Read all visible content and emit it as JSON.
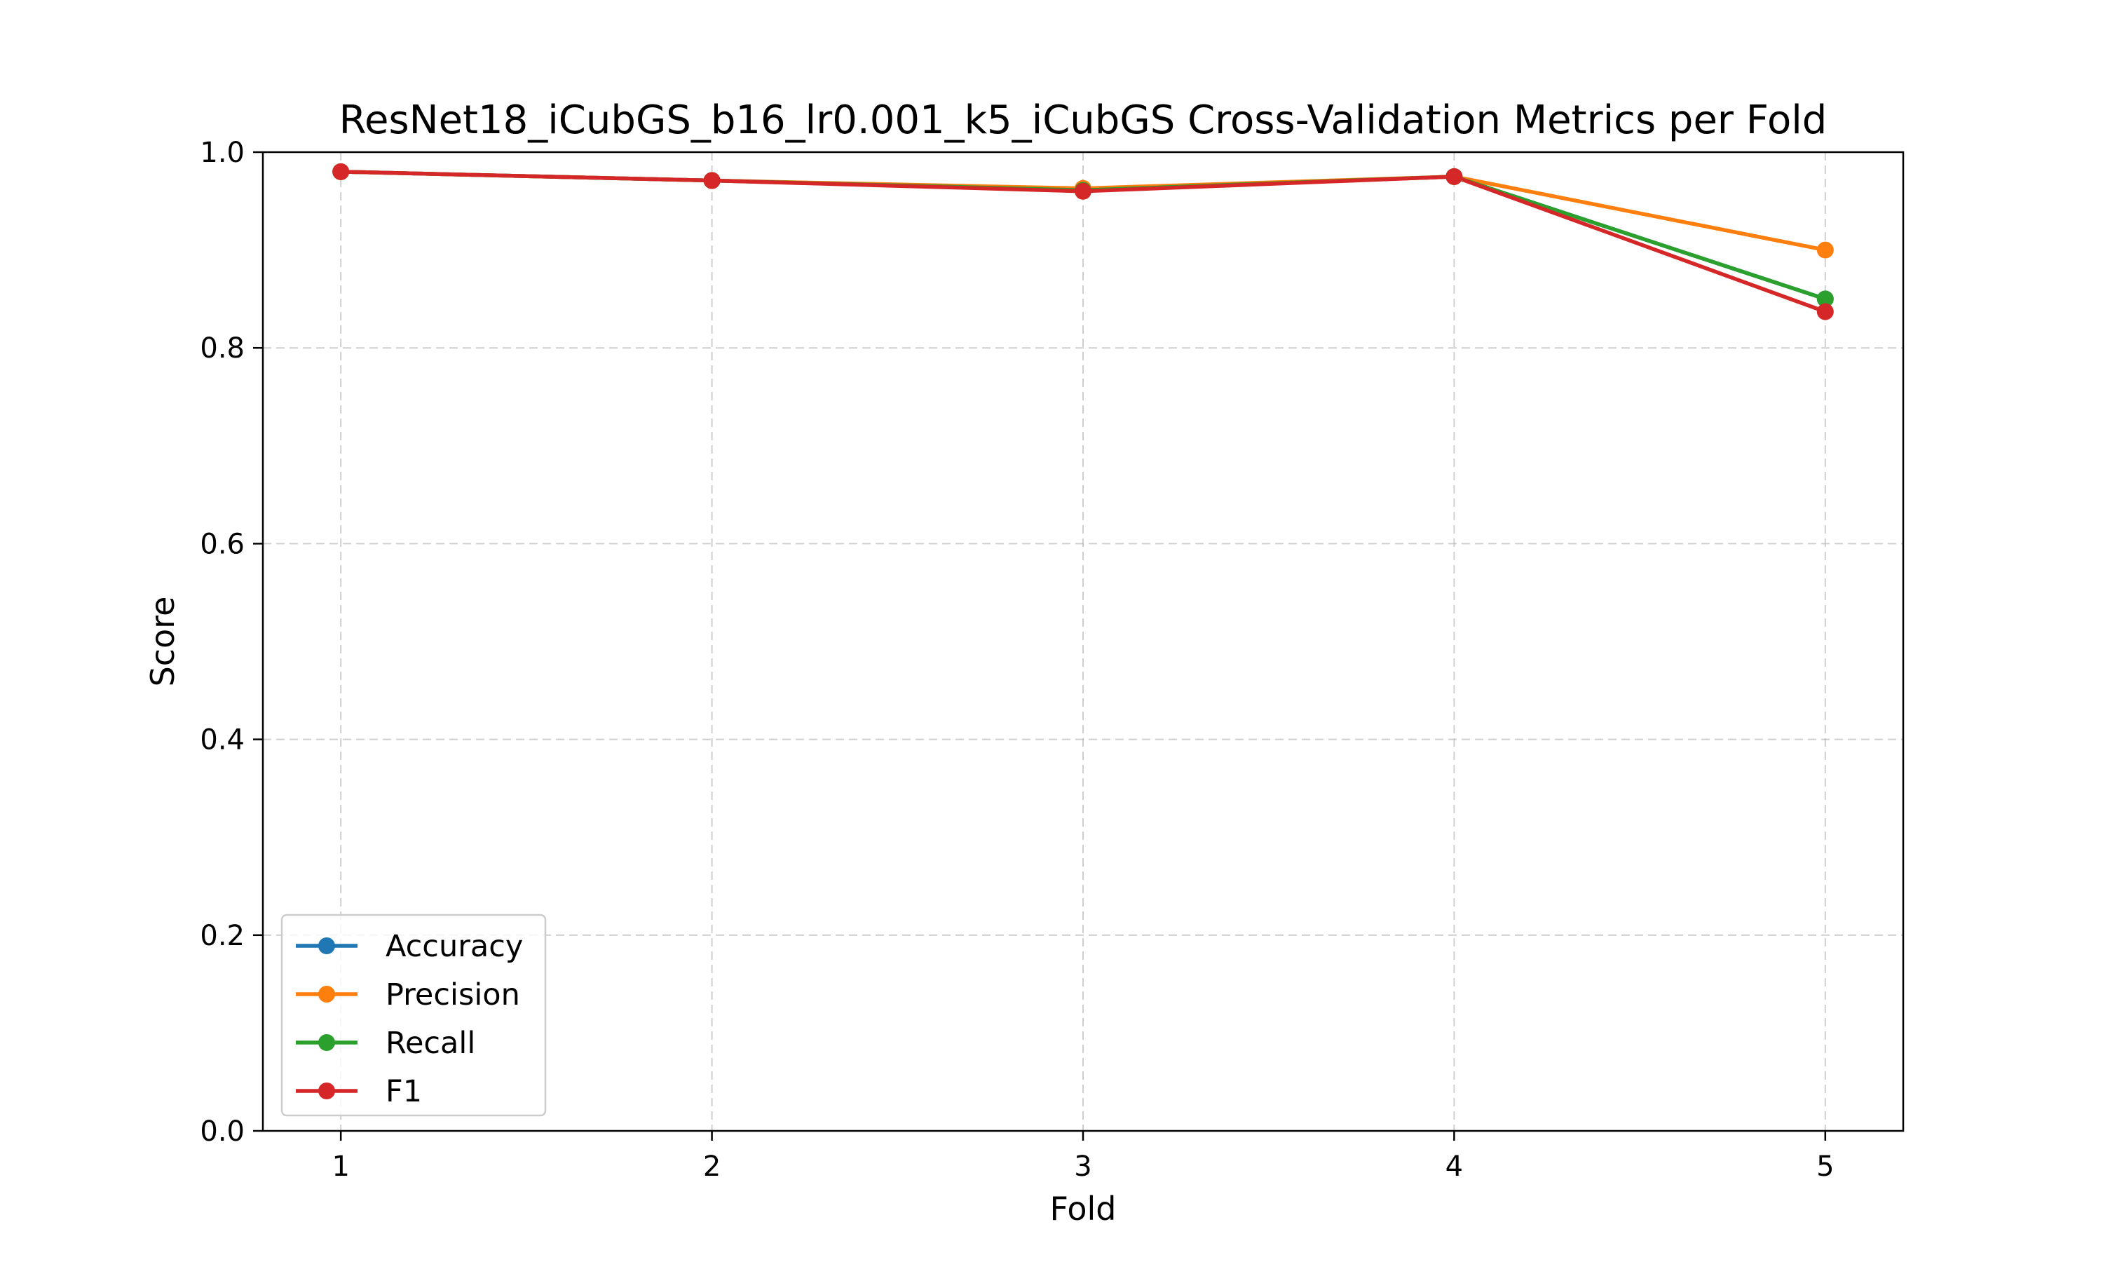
{
  "chart_data": {
    "type": "line",
    "title": "ResNet18_iCubGS_b16_lr0.001_k5_iCubGS Cross-Validation Metrics per Fold",
    "xlabel": "Fold",
    "ylabel": "Score",
    "x": [
      1,
      2,
      3,
      4,
      5
    ],
    "xticks": [
      "1",
      "2",
      "3",
      "4",
      "5"
    ],
    "xlim": [
      0.79,
      5.21
    ],
    "ylim": [
      0.0,
      1.0
    ],
    "yticks": [
      "0.0",
      "0.2",
      "0.4",
      "0.6",
      "0.8",
      "1.0"
    ],
    "grid": true,
    "legend_position": "lower-left",
    "series": [
      {
        "name": "Accuracy",
        "color": "#1f77b4",
        "values": [
          0.98,
          0.971,
          0.961,
          0.975,
          0.85
        ]
      },
      {
        "name": "Precision",
        "color": "#ff7f0e",
        "values": [
          0.98,
          0.971,
          0.963,
          0.975,
          0.9
        ]
      },
      {
        "name": "Recall",
        "color": "#2ca02c",
        "values": [
          0.98,
          0.971,
          0.961,
          0.975,
          0.85
        ]
      },
      {
        "name": "F1",
        "color": "#d62728",
        "values": [
          0.98,
          0.971,
          0.96,
          0.975,
          0.837
        ]
      }
    ]
  }
}
